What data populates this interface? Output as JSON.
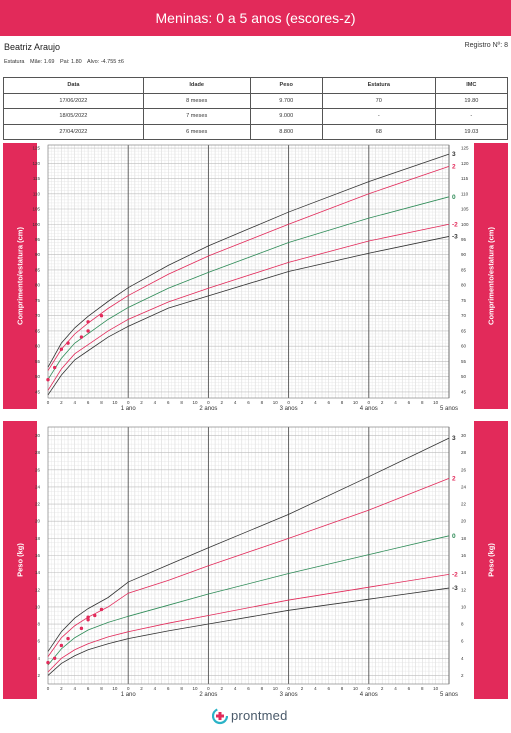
{
  "header": {
    "title": "Meninas: 0 a 5 anos (escores-z)"
  },
  "patient": {
    "name": "Beatriz Araujo",
    "record": "Registro Nº: 8",
    "label": "Estatura",
    "mother": "Mãe: 1.69",
    "father": "Pai: 1.80",
    "target": "Alvo: -4.755 ±6"
  },
  "table": {
    "headers": [
      "Data",
      "Idade",
      "Peso",
      "Estatura",
      "IMC"
    ],
    "rows": [
      [
        "17/06/2022",
        "8 meses",
        "9.700",
        "70",
        "19.80"
      ],
      [
        "18/05/2022",
        "7 meses",
        "9.000",
        "-",
        "-"
      ],
      [
        "27/04/2022",
        "6 meses",
        "8.800",
        "68",
        "19.03"
      ]
    ]
  },
  "colors": {
    "brand": "#e22a5a",
    "curve_extreme": "#333333",
    "curve_mid": "#e22a5a",
    "curve_median": "#2e8b57",
    "points": "#e22a5a"
  },
  "logo": {
    "text": "prontmed",
    "icon": "prontmed-logo-icon"
  },
  "chart_data": [
    {
      "type": "line",
      "side_label": "Comprimento/estatura (cm)",
      "xlim": [
        0,
        60
      ],
      "ylim": [
        43,
        126
      ],
      "y_ticks": [
        45,
        50,
        55,
        60,
        65,
        70,
        75,
        80,
        85,
        90,
        95,
        100,
        105,
        110,
        115,
        120,
        125
      ],
      "x_minor_ticks": [
        0,
        2,
        4,
        6,
        8,
        10
      ],
      "x_year_labels": [
        "1 ano",
        "2 anos",
        "3 anos",
        "4 anos",
        "5 anos"
      ],
      "x_years": [
        12,
        24,
        36,
        48,
        60
      ],
      "grid": true,
      "series": [
        {
          "name": "3",
          "kind": "extreme",
          "x": [
            0,
            2,
            4,
            6,
            9,
            12,
            18,
            24,
            36,
            48,
            60
          ],
          "y": [
            53.1,
            61.0,
            66.0,
            69.8,
            74.7,
            79.2,
            86.5,
            92.9,
            104.0,
            114.0,
            123.0
          ]
        },
        {
          "name": "2",
          "kind": "mid",
          "x": [
            0,
            2,
            4,
            6,
            9,
            12,
            18,
            24,
            36,
            48,
            60
          ],
          "y": [
            52.0,
            59.0,
            64.0,
            67.6,
            72.4,
            76.6,
            83.6,
            89.6,
            100.0,
            110.0,
            119.0
          ]
        },
        {
          "name": "0",
          "kind": "median",
          "x": [
            0,
            2,
            4,
            6,
            9,
            12,
            18,
            24,
            36,
            48,
            60
          ],
          "y": [
            49.1,
            56.0,
            61.0,
            64.1,
            68.8,
            72.7,
            79.0,
            84.2,
            94.0,
            102.0,
            109.0
          ]
        },
        {
          "name": "-2",
          "kind": "mid",
          "x": [
            0,
            2,
            4,
            6,
            9,
            12,
            18,
            24,
            36,
            48,
            60
          ],
          "y": [
            45.5,
            52.5,
            57.5,
            60.5,
            65.0,
            68.8,
            74.5,
            79.0,
            87.5,
            94.5,
            100.0
          ]
        },
        {
          "name": "-3",
          "kind": "extreme",
          "x": [
            0,
            2,
            4,
            6,
            9,
            12,
            18,
            24,
            36,
            48,
            60
          ],
          "y": [
            44.0,
            50.5,
            55.5,
            58.5,
            63.0,
            66.5,
            72.5,
            76.5,
            84.5,
            90.5,
            96.0
          ]
        }
      ],
      "points": [
        {
          "x": 0,
          "y": 49
        },
        {
          "x": 1,
          "y": 53
        },
        {
          "x": 2,
          "y": 59
        },
        {
          "x": 3,
          "y": 61
        },
        {
          "x": 5,
          "y": 63
        },
        {
          "x": 6,
          "y": 65
        },
        {
          "x": 6,
          "y": 68
        },
        {
          "x": 8,
          "y": 70
        }
      ]
    },
    {
      "type": "line",
      "side_label": "Peso (kg)",
      "xlim": [
        0,
        60
      ],
      "ylim": [
        1,
        31
      ],
      "y_ticks": [
        2,
        4,
        6,
        8,
        10,
        12,
        14,
        16,
        18,
        20,
        22,
        24,
        26,
        28,
        30
      ],
      "x_minor_ticks": [
        0,
        2,
        4,
        6,
        8,
        10
      ],
      "x_year_labels": [
        "1 ano",
        "2 anos",
        "3 anos",
        "4 anos",
        "5 anos"
      ],
      "x_years": [
        12,
        24,
        36,
        48,
        60
      ],
      "grid": true,
      "series": [
        {
          "name": "3",
          "kind": "extreme",
          "x": [
            0,
            2,
            4,
            6,
            9,
            12,
            18,
            24,
            36,
            48,
            60
          ],
          "y": [
            4.8,
            7.1,
            8.7,
            9.8,
            11.1,
            12.9,
            14.9,
            16.9,
            20.8,
            25.2,
            29.7
          ]
        },
        {
          "name": "2",
          "kind": "mid",
          "x": [
            0,
            2,
            4,
            6,
            9,
            12,
            18,
            24,
            36,
            48,
            60
          ],
          "y": [
            4.2,
            6.4,
            7.8,
            8.8,
            10.0,
            11.6,
            13.1,
            14.8,
            18.0,
            21.3,
            25.0
          ]
        },
        {
          "name": "0",
          "kind": "median",
          "x": [
            0,
            2,
            4,
            6,
            9,
            12,
            18,
            24,
            36,
            48,
            60
          ],
          "y": [
            3.2,
            5.1,
            6.4,
            7.3,
            8.2,
            8.9,
            10.2,
            11.5,
            13.9,
            16.1,
            18.3
          ]
        },
        {
          "name": "-2",
          "kind": "mid",
          "x": [
            0,
            2,
            4,
            6,
            9,
            12,
            18,
            24,
            36,
            48,
            60
          ],
          "y": [
            2.4,
            4.0,
            5.0,
            5.7,
            6.5,
            7.1,
            8.1,
            9.0,
            10.8,
            12.3,
            13.8
          ]
        },
        {
          "name": "-3",
          "kind": "extreme",
          "x": [
            0,
            2,
            4,
            6,
            9,
            12,
            18,
            24,
            36,
            48,
            60
          ],
          "y": [
            2.0,
            3.4,
            4.3,
            5.0,
            5.7,
            6.3,
            7.2,
            8.0,
            9.6,
            10.9,
            12.2
          ]
        }
      ],
      "points": [
        {
          "x": 0,
          "y": 3.5
        },
        {
          "x": 1,
          "y": 4.0
        },
        {
          "x": 2,
          "y": 5.5
        },
        {
          "x": 3,
          "y": 6.3
        },
        {
          "x": 5,
          "y": 7.5
        },
        {
          "x": 6,
          "y": 8.5
        },
        {
          "x": 6,
          "y": 8.8
        },
        {
          "x": 7,
          "y": 9.0
        },
        {
          "x": 8,
          "y": 9.7
        }
      ]
    }
  ]
}
